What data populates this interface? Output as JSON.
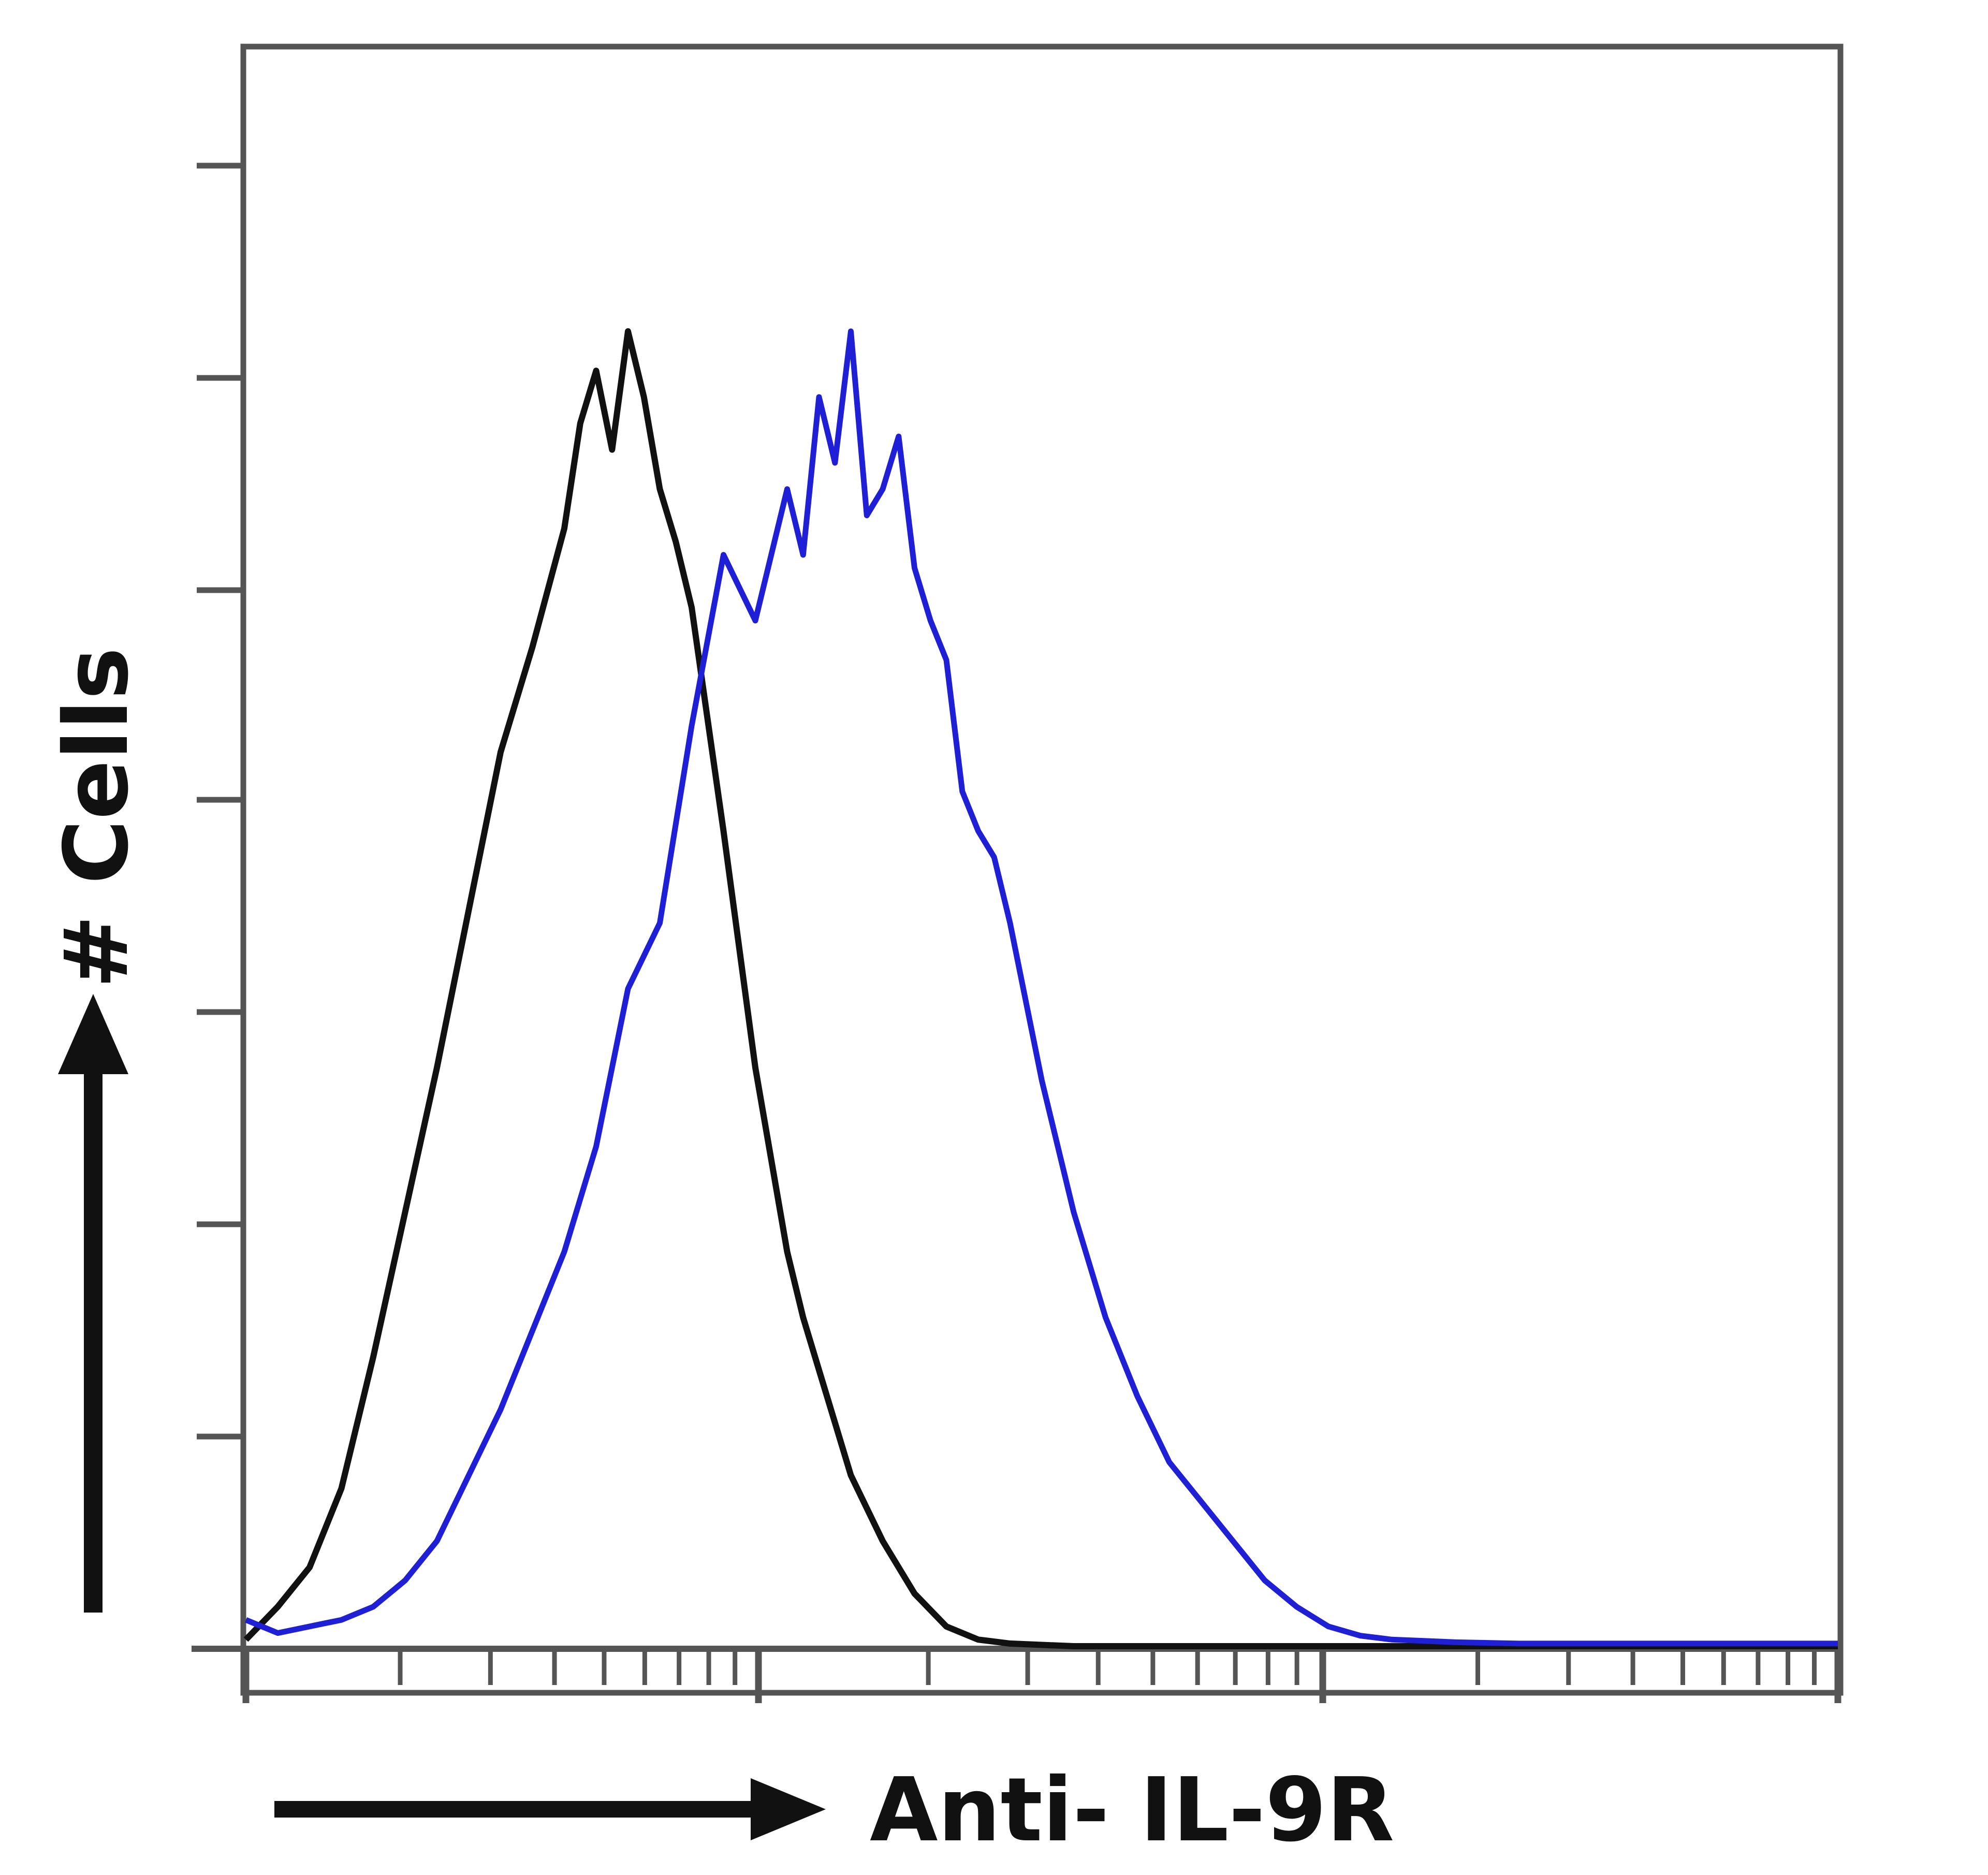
{
  "chart_data": {
    "type": "area",
    "title": "",
    "xlabel": "Anti- IL-9R",
    "ylabel": "# Cells",
    "x_scale": "log",
    "xlim": [
      0,
      1
    ],
    "ylim": [
      0,
      1
    ],
    "grid": false,
    "legend": "none",
    "series": [
      {
        "color": "#111111",
        "x": [
          0.0,
          0.02,
          0.04,
          0.06,
          0.08,
          0.1,
          0.12,
          0.14,
          0.16,
          0.18,
          0.2,
          0.21,
          0.22,
          0.23,
          0.24,
          0.25,
          0.26,
          0.27,
          0.28,
          0.3,
          0.32,
          0.34,
          0.35,
          0.36,
          0.37,
          0.38,
          0.4,
          0.42,
          0.44,
          0.46,
          0.48,
          0.5,
          0.52,
          0.54,
          0.56,
          0.58,
          0.6,
          0.62,
          0.64,
          0.66,
          0.68,
          0.7,
          0.72,
          0.75,
          0.8,
          0.85,
          0.9,
          0.95,
          1.0
        ],
        "y": [
          0.005,
          0.03,
          0.06,
          0.12,
          0.22,
          0.33,
          0.44,
          0.56,
          0.68,
          0.76,
          0.85,
          0.93,
          0.97,
          0.91,
          1.0,
          0.95,
          0.88,
          0.84,
          0.79,
          0.62,
          0.44,
          0.3,
          0.25,
          0.21,
          0.17,
          0.13,
          0.08,
          0.04,
          0.015,
          0.005,
          0.002,
          0.001,
          0,
          0,
          0,
          0,
          0,
          0,
          0,
          0,
          0,
          0,
          0,
          0,
          0,
          0,
          0,
          0,
          0
        ]
      },
      {
        "color": "#1f1fd6",
        "x": [
          0.0,
          0.02,
          0.04,
          0.06,
          0.08,
          0.1,
          0.12,
          0.14,
          0.16,
          0.18,
          0.2,
          0.22,
          0.24,
          0.26,
          0.28,
          0.3,
          0.32,
          0.34,
          0.35,
          0.36,
          0.37,
          0.38,
          0.39,
          0.4,
          0.41,
          0.42,
          0.43,
          0.44,
          0.45,
          0.46,
          0.47,
          0.48,
          0.5,
          0.52,
          0.54,
          0.56,
          0.58,
          0.6,
          0.62,
          0.64,
          0.66,
          0.68,
          0.7,
          0.72,
          0.74,
          0.76,
          0.8,
          0.85,
          0.9,
          0.95,
          1.0
        ],
        "y": [
          0.02,
          0.01,
          0.015,
          0.02,
          0.03,
          0.05,
          0.08,
          0.13,
          0.18,
          0.24,
          0.3,
          0.38,
          0.5,
          0.55,
          0.7,
          0.83,
          0.78,
          0.88,
          0.83,
          0.95,
          0.9,
          1.0,
          0.86,
          0.88,
          0.92,
          0.82,
          0.78,
          0.75,
          0.65,
          0.62,
          0.6,
          0.55,
          0.43,
          0.33,
          0.25,
          0.19,
          0.14,
          0.11,
          0.08,
          0.05,
          0.03,
          0.015,
          0.008,
          0.005,
          0.004,
          0.003,
          0.002,
          0.002,
          0.002,
          0.002,
          0.002
        ]
      }
    ]
  }
}
